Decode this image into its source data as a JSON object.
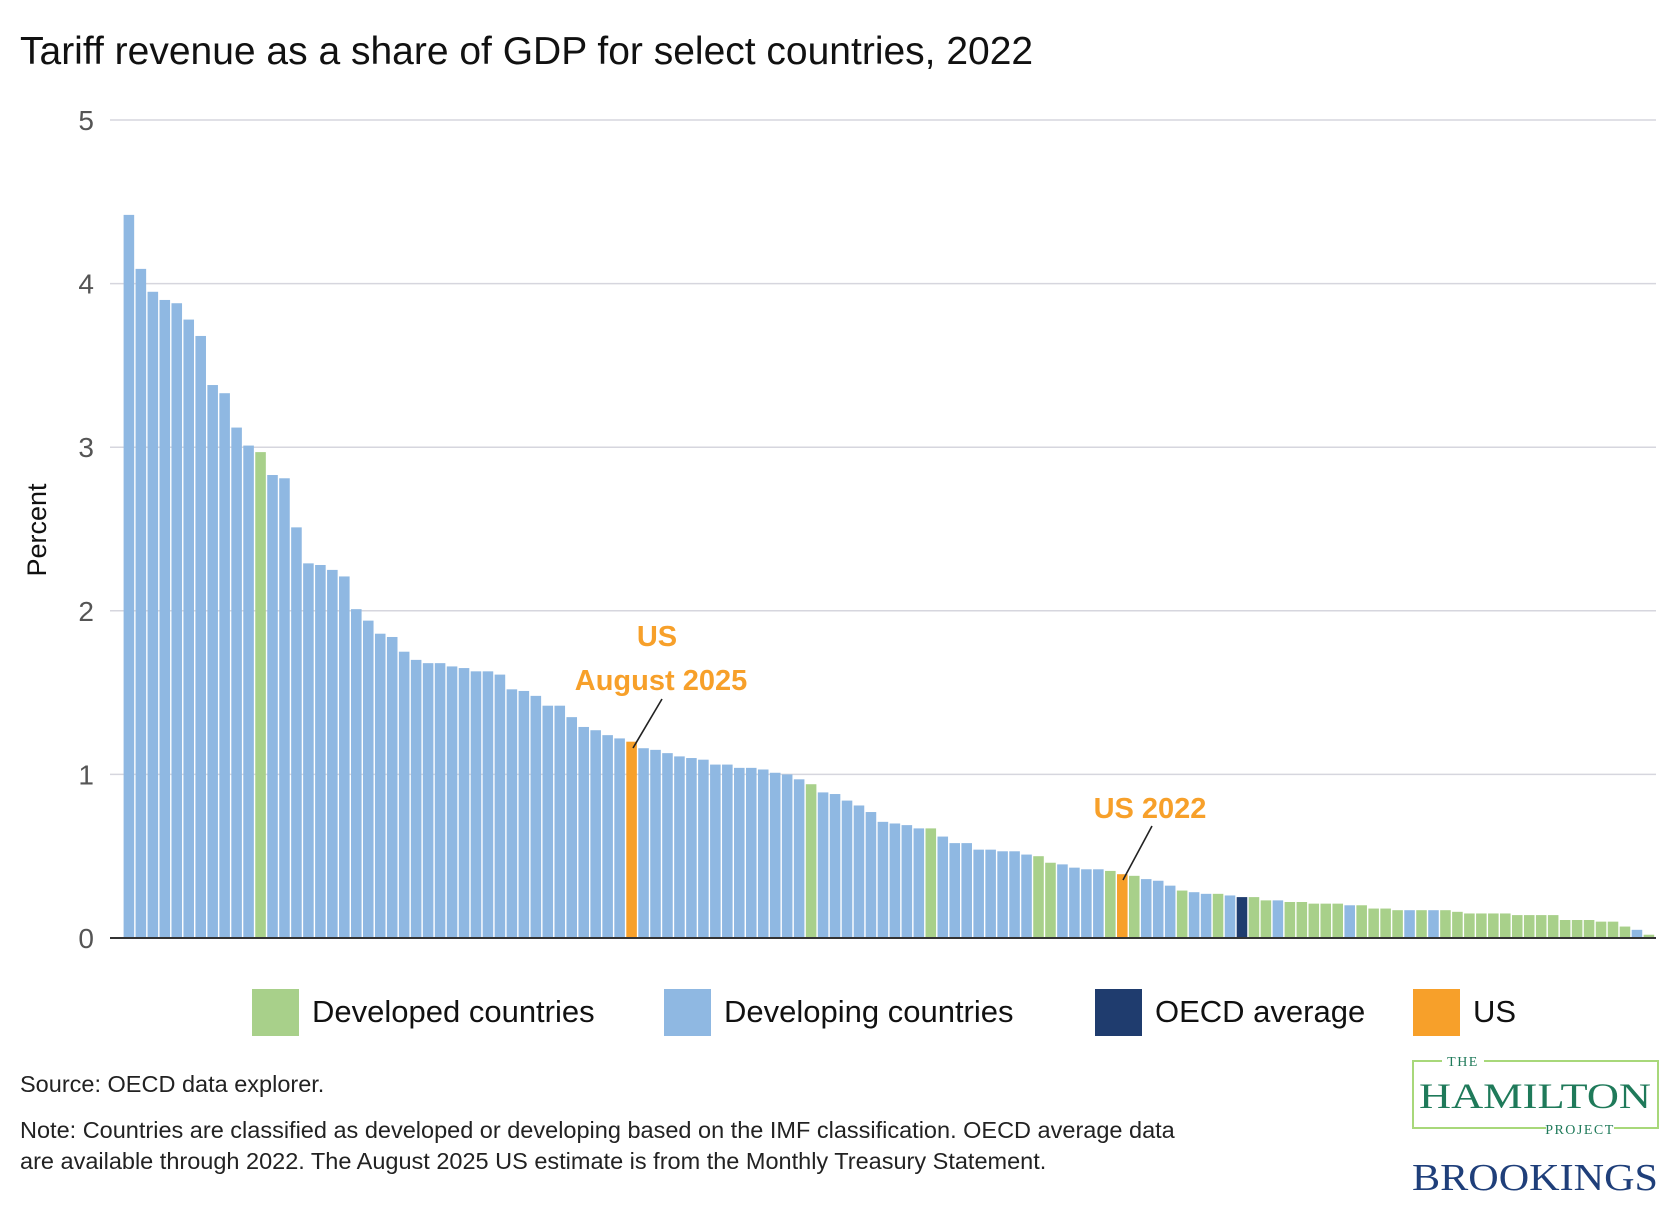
{
  "chart_data": {
    "type": "bar",
    "title": "Tariff revenue as a share of GDP for select countries, 2022",
    "xlabel": "",
    "ylabel": "Percent",
    "ylim": [
      0,
      5
    ],
    "yticks": [
      "0",
      "1",
      "2",
      "3",
      "4",
      "5"
    ],
    "grid": true,
    "legend_placement": "bottom",
    "colors": {
      "developed": "#a8d08a",
      "developing": "#8fb8e2",
      "oecd": "#1f3c6e",
      "us": "#f7a02a"
    },
    "legend": [
      {
        "key": "developed",
        "label": "Developed countries"
      },
      {
        "key": "developing",
        "label": "Developing countries"
      },
      {
        "key": "oecd",
        "label": "OECD average"
      },
      {
        "key": "us",
        "label": "US"
      }
    ],
    "values": [
      4.42,
      4.09,
      3.95,
      3.9,
      3.88,
      3.78,
      3.68,
      3.38,
      3.33,
      3.12,
      3.01,
      2.97,
      2.83,
      2.81,
      2.51,
      2.29,
      2.28,
      2.25,
      2.21,
      2.01,
      1.94,
      1.86,
      1.84,
      1.75,
      1.7,
      1.68,
      1.68,
      1.66,
      1.65,
      1.63,
      1.63,
      1.61,
      1.52,
      1.51,
      1.48,
      1.42,
      1.42,
      1.35,
      1.29,
      1.27,
      1.24,
      1.22,
      1.2,
      1.16,
      1.15,
      1.13,
      1.11,
      1.1,
      1.09,
      1.06,
      1.06,
      1.04,
      1.04,
      1.03,
      1.01,
      1.0,
      0.97,
      0.94,
      0.89,
      0.88,
      0.84,
      0.81,
      0.77,
      0.71,
      0.7,
      0.69,
      0.67,
      0.67,
      0.62,
      0.58,
      0.58,
      0.54,
      0.54,
      0.53,
      0.53,
      0.51,
      0.5,
      0.46,
      0.45,
      0.43,
      0.42,
      0.42,
      0.41,
      0.39,
      0.38,
      0.36,
      0.35,
      0.32,
      0.29,
      0.28,
      0.27,
      0.27,
      0.26,
      0.25,
      0.25,
      0.23,
      0.23,
      0.22,
      0.22,
      0.21,
      0.21,
      0.21,
      0.2,
      0.2,
      0.18,
      0.18,
      0.17,
      0.17,
      0.17,
      0.17,
      0.17,
      0.16,
      0.15,
      0.15,
      0.15,
      0.15,
      0.14,
      0.14,
      0.14,
      0.14,
      0.11,
      0.11,
      0.11,
      0.1,
      0.1,
      0.07,
      0.05,
      0.02
    ],
    "groups": [
      "developing",
      "developing",
      "developing",
      "developing",
      "developing",
      "developing",
      "developing",
      "developing",
      "developing",
      "developing",
      "developing",
      "developed",
      "developing",
      "developing",
      "developing",
      "developing",
      "developing",
      "developing",
      "developing",
      "developing",
      "developing",
      "developing",
      "developing",
      "developing",
      "developing",
      "developing",
      "developing",
      "developing",
      "developing",
      "developing",
      "developing",
      "developing",
      "developing",
      "developing",
      "developing",
      "developing",
      "developing",
      "developing",
      "developing",
      "developing",
      "developing",
      "developing",
      "us",
      "developing",
      "developing",
      "developing",
      "developing",
      "developing",
      "developing",
      "developing",
      "developing",
      "developing",
      "developing",
      "developing",
      "developing",
      "developing",
      "developing",
      "developed",
      "developing",
      "developing",
      "developing",
      "developing",
      "developing",
      "developing",
      "developing",
      "developing",
      "developing",
      "developed",
      "developing",
      "developing",
      "developing",
      "developing",
      "developing",
      "developing",
      "developing",
      "developing",
      "developed",
      "developed",
      "developing",
      "developing",
      "developing",
      "developing",
      "developed",
      "us",
      "developed",
      "developing",
      "developing",
      "developing",
      "developed",
      "developing",
      "developing",
      "developed",
      "developing",
      "oecd",
      "developed",
      "developed",
      "developing",
      "developed",
      "developed",
      "developed",
      "developed",
      "developed",
      "developing",
      "developed",
      "developed",
      "developed",
      "developed",
      "developing",
      "developed",
      "developing",
      "developed",
      "developed",
      "developed",
      "developed",
      "developed",
      "developed",
      "developed",
      "developed",
      "developed",
      "developed",
      "developed",
      "developed",
      "developed",
      "developed",
      "developed",
      "developed",
      "developing",
      "developed"
    ],
    "annotations": [
      {
        "lines": [
          "US",
          "August 2025"
        ],
        "bar_index": 42
      },
      {
        "lines": [
          "US 2022"
        ],
        "bar_index": 83
      }
    ]
  },
  "footer": {
    "source": "Source: OECD data explorer.",
    "note_line1": "Note: Countries are classified as developed or developing based on the IMF classification. OECD average data",
    "note_line2": "are available through 2022. The August 2025 US estimate is from the Monthly Treasury Statement."
  },
  "logos": {
    "hamilton_the": "THE",
    "hamilton_name": "HAMILTON",
    "hamilton_project": "PROJECT",
    "brookings": "BROOKINGS"
  }
}
